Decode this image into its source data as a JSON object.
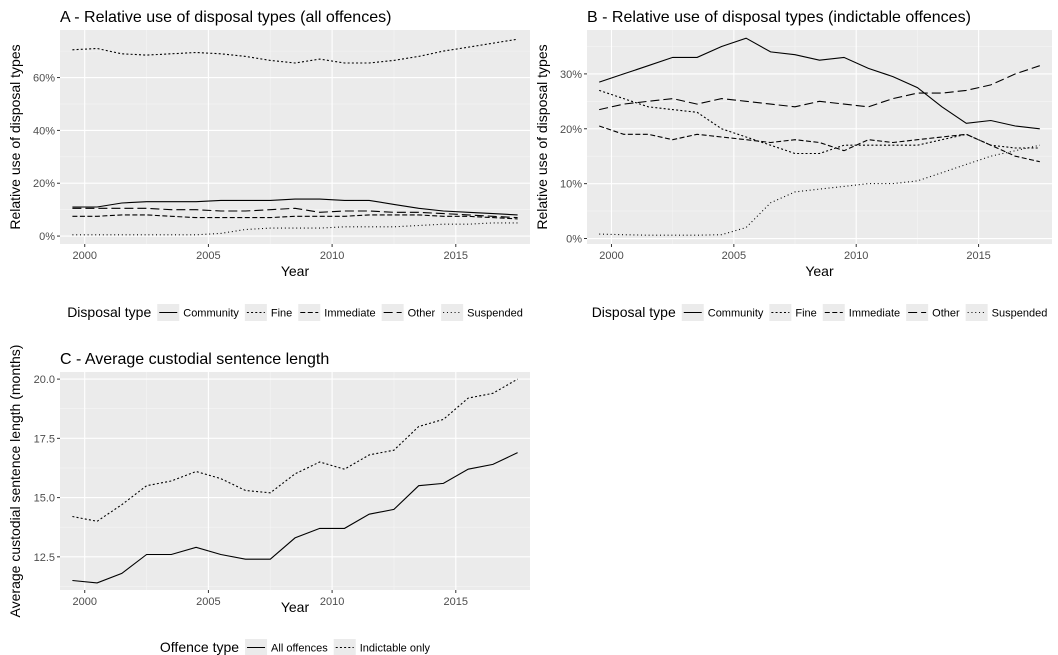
{
  "chart_data": [
    {
      "id": "A",
      "type": "line",
      "title": "A - Relative use of disposal types (all offences)",
      "xlabel": "Year",
      "ylabel": "Relative use of disposal types",
      "xlim": [
        1999,
        2018
      ],
      "ylim": [
        -3,
        78
      ],
      "xticks": [
        2000,
        2005,
        2010,
        2015
      ],
      "xtick_labels": [
        "2000",
        "2005",
        "2010",
        "2015"
      ],
      "yticks": [
        0,
        20,
        40,
        60
      ],
      "ytick_labels": [
        "0%",
        "20%",
        "40%",
        "60%"
      ],
      "legend": {
        "title": "Disposal type",
        "placement": "bottom"
      },
      "x": [
        1999.5,
        2000.5,
        2001.5,
        2002.5,
        2003.5,
        2004.5,
        2005.5,
        2006.5,
        2007.5,
        2008.5,
        2009.5,
        2010.5,
        2011.5,
        2012.5,
        2013.5,
        2014.5,
        2015.5,
        2016.5,
        2017.5
      ],
      "series": [
        {
          "name": "Community",
          "dash": "",
          "values": [
            11,
            11,
            12.5,
            13,
            13,
            13,
            13.5,
            13.5,
            13.5,
            14,
            14,
            13.5,
            13.5,
            12,
            10.5,
            9.5,
            9,
            8.5,
            8
          ]
        },
        {
          "name": "Fine",
          "dash": "2,2.2",
          "values": [
            70.5,
            71,
            69,
            68.5,
            69,
            69.5,
            69,
            68,
            66.5,
            65.5,
            67,
            65.5,
            65.5,
            66.5,
            68,
            70,
            71.5,
            73,
            74.5
          ]
        },
        {
          "name": "Immediate",
          "dash": "5,2.5",
          "values": [
            7.5,
            7.5,
            8,
            8,
            7.5,
            7,
            7,
            7,
            7,
            7.5,
            7.5,
            7.5,
            8,
            8,
            8,
            7.5,
            7.5,
            7,
            6.5
          ]
        },
        {
          "name": "Other",
          "dash": "9,4",
          "values": [
            10.5,
            10.5,
            10.5,
            10.5,
            10,
            10,
            9.5,
            9.5,
            10,
            10.5,
            9,
            9.5,
            9.5,
            9,
            9,
            8.5,
            8,
            7.5,
            7
          ]
        },
        {
          "name": "Suspended",
          "dash": "1,2.8",
          "values": [
            0.5,
            0.5,
            0.5,
            0.5,
            0.5,
            0.5,
            1,
            2.5,
            3,
            3,
            3,
            3.5,
            3.5,
            3.5,
            4,
            4.5,
            4.5,
            5,
            5
          ]
        }
      ]
    },
    {
      "id": "B",
      "type": "line",
      "title": "B - Relative use of disposal types (indictable offences)",
      "xlabel": "Year",
      "ylabel": "Relative use of disposal types",
      "xlim": [
        1999,
        2018
      ],
      "ylim": [
        -1,
        38
      ],
      "xticks": [
        2000,
        2005,
        2010,
        2015
      ],
      "xtick_labels": [
        "2000",
        "2005",
        "2010",
        "2015"
      ],
      "yticks": [
        0,
        10,
        20,
        30
      ],
      "ytick_labels": [
        "0%",
        "10%",
        "20%",
        "30%"
      ],
      "legend": {
        "title": "Disposal type",
        "placement": "bottom"
      },
      "x": [
        1999.5,
        2000.5,
        2001.5,
        2002.5,
        2003.5,
        2004.5,
        2005.5,
        2006.5,
        2007.5,
        2008.5,
        2009.5,
        2010.5,
        2011.5,
        2012.5,
        2013.5,
        2014.5,
        2015.5,
        2016.5,
        2017.5
      ],
      "series": [
        {
          "name": "Community",
          "dash": "",
          "values": [
            28.5,
            30,
            31.5,
            33,
            33,
            35,
            36.5,
            34,
            33.5,
            32.5,
            33,
            31,
            29.5,
            27.5,
            24,
            21,
            21.5,
            20.5,
            20
          ]
        },
        {
          "name": "Fine",
          "dash": "2,2.2",
          "values": [
            27,
            25.5,
            24,
            23.5,
            23,
            20,
            18.5,
            17,
            15.5,
            15.5,
            17,
            17,
            17,
            17,
            18,
            19,
            17,
            16.5,
            16.5
          ]
        },
        {
          "name": "Immediate",
          "dash": "5,2.5",
          "values": [
            20.5,
            19,
            19,
            18,
            19,
            18.5,
            18,
            17.5,
            18,
            17.5,
            16,
            18,
            17.5,
            18,
            18.5,
            19,
            17,
            15,
            14
          ]
        },
        {
          "name": "Other",
          "dash": "9,4",
          "values": [
            23.5,
            24.5,
            25,
            25.5,
            24.5,
            25.5,
            25,
            24.5,
            24,
            25,
            24.5,
            24,
            25.5,
            26.5,
            26.5,
            27,
            28,
            30,
            31.5
          ]
        },
        {
          "name": "Suspended",
          "dash": "1,2.8",
          "values": [
            0.8,
            0.7,
            0.6,
            0.6,
            0.6,
            0.7,
            2,
            6.5,
            8.5,
            9,
            9.5,
            10,
            10,
            10.5,
            12,
            13.5,
            15,
            16,
            17
          ]
        }
      ]
    },
    {
      "id": "C",
      "type": "line",
      "title": "C - Average custodial sentence length",
      "xlabel": "Year",
      "ylabel": "Average custodial sentence length (months)",
      "xlim": [
        1999,
        2018
      ],
      "ylim": [
        11.1,
        20.3
      ],
      "xticks": [
        2000,
        2005,
        2010,
        2015
      ],
      "xtick_labels": [
        "2000",
        "2005",
        "2010",
        "2015"
      ],
      "yticks": [
        12.5,
        15,
        17.5,
        20
      ],
      "ytick_labels": [
        "12.5",
        "15.0",
        "17.5",
        "20.0"
      ],
      "legend": {
        "title": "Offence type",
        "placement": "bottom"
      },
      "x": [
        1999.5,
        2000.5,
        2001.5,
        2002.5,
        2003.5,
        2004.5,
        2005.5,
        2006.5,
        2007.5,
        2008.5,
        2009.5,
        2010.5,
        2011.5,
        2012.5,
        2013.5,
        2014.5,
        2015.5,
        2016.5,
        2017.5
      ],
      "series": [
        {
          "name": "All offences",
          "dash": "",
          "values": [
            11.5,
            11.4,
            11.8,
            12.6,
            12.6,
            12.9,
            12.6,
            12.4,
            12.4,
            13.3,
            13.7,
            13.7,
            14.3,
            14.5,
            15.5,
            15.6,
            16.2,
            16.4,
            16.9
          ]
        },
        {
          "name": "Indictable only",
          "dash": "2,2.2",
          "values": [
            14.2,
            14.0,
            14.7,
            15.5,
            15.7,
            16.1,
            15.8,
            15.3,
            15.2,
            16.0,
            16.5,
            16.2,
            16.8,
            17.0,
            18.0,
            18.3,
            19.2,
            19.4,
            20.0
          ]
        }
      ]
    }
  ]
}
